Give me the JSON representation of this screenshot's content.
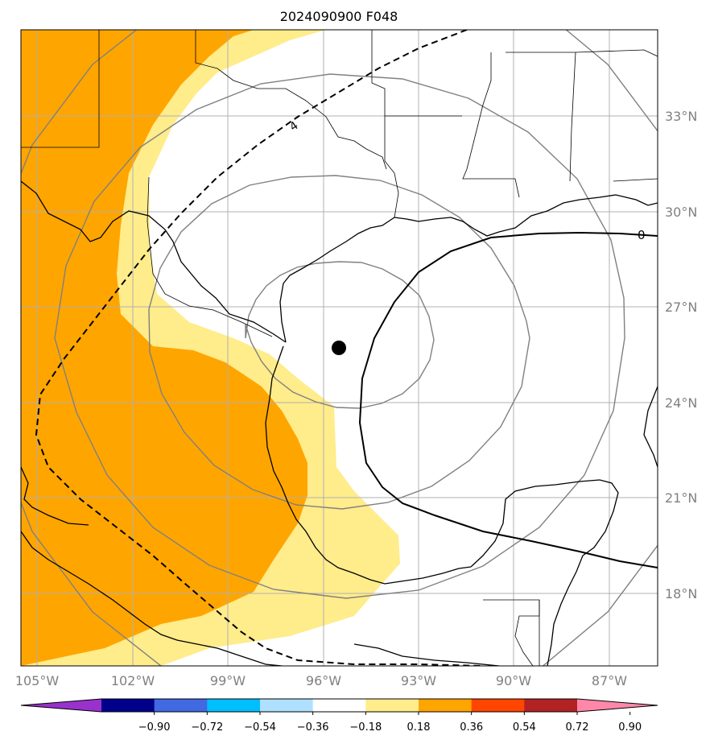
{
  "title": "2024090900 F048",
  "map": {
    "lon_labels": [
      "105°W",
      "102°W",
      "99°W",
      "96°W",
      "93°W",
      "90°W",
      "87°W"
    ],
    "lat_labels": [
      "33°N",
      "30°N",
      "27°N",
      "24°N",
      "21°N",
      "18°N"
    ],
    "lon_extent_deg_w": [
      105.5,
      85.5
    ],
    "lat_extent_deg_n": [
      15.2,
      35.1
    ],
    "storm_center": {
      "lon": -95.3,
      "lat": 25.6
    },
    "contour_labels": [
      "4",
      "0"
    ],
    "range_rings": "concentric",
    "grid": true
  },
  "colorbar": {
    "levels": [
      "−0.90",
      "−0.72",
      "−0.54",
      "−0.36",
      "−0.18",
      "0.18",
      "0.36",
      "0.54",
      "0.72",
      "0.90"
    ],
    "colors": [
      "#9932cc",
      "#00008b",
      "#4169e1",
      "#00bfff",
      "#b0e0ff",
      "#ffffff",
      "#ffec8b",
      "#ffa500",
      "#ff4500",
      "#b22222",
      "#ff88aa"
    ],
    "extend": "both"
  },
  "fill_colors": {
    "light": "#ffec8b",
    "strong": "#ffa500"
  }
}
